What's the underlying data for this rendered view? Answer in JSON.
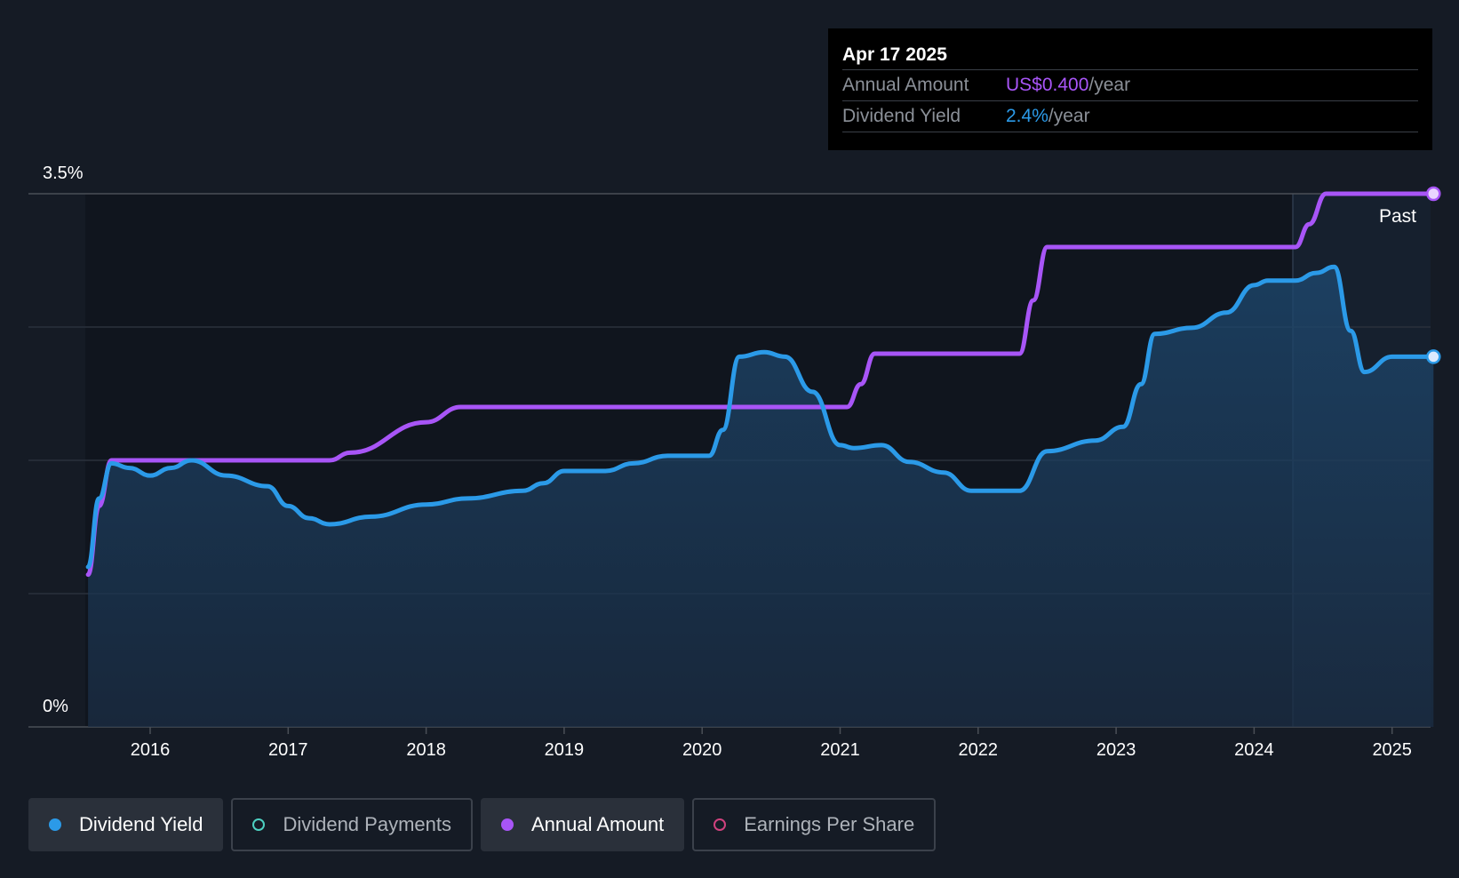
{
  "chart_data": {
    "type": "line",
    "y_axis": {
      "top_label": "3.5%",
      "bottom_label": "0%",
      "ylim": [
        0,
        3.5
      ]
    },
    "x_ticks": [
      "2016",
      "2017",
      "2018",
      "2019",
      "2020",
      "2021",
      "2022",
      "2023",
      "2024",
      "2025"
    ],
    "past_label": "Past",
    "series": [
      {
        "name": "Dividend Yield",
        "color": "#2b9ae8",
        "unit": "%",
        "points": [
          [
            2015.55,
            1.05
          ],
          [
            2015.63,
            1.5
          ],
          [
            2015.72,
            1.73
          ],
          [
            2015.85,
            1.7
          ],
          [
            2016.0,
            1.65
          ],
          [
            2016.15,
            1.7
          ],
          [
            2016.3,
            1.75
          ],
          [
            2016.55,
            1.65
          ],
          [
            2016.85,
            1.58
          ],
          [
            2017.0,
            1.45
          ],
          [
            2017.15,
            1.37
          ],
          [
            2017.3,
            1.33
          ],
          [
            2017.6,
            1.38
          ],
          [
            2018.0,
            1.46
          ],
          [
            2018.3,
            1.5
          ],
          [
            2018.7,
            1.55
          ],
          [
            2018.85,
            1.6
          ],
          [
            2019.0,
            1.68
          ],
          [
            2019.3,
            1.68
          ],
          [
            2019.5,
            1.73
          ],
          [
            2019.75,
            1.78
          ],
          [
            2020.05,
            1.78
          ],
          [
            2020.15,
            1.95
          ],
          [
            2020.27,
            2.43
          ],
          [
            2020.45,
            2.46
          ],
          [
            2020.6,
            2.43
          ],
          [
            2020.8,
            2.2
          ],
          [
            2021.0,
            1.85
          ],
          [
            2021.1,
            1.83
          ],
          [
            2021.3,
            1.85
          ],
          [
            2021.5,
            1.74
          ],
          [
            2021.75,
            1.67
          ],
          [
            2021.95,
            1.55
          ],
          [
            2022.3,
            1.55
          ],
          [
            2022.5,
            1.81
          ],
          [
            2022.85,
            1.88
          ],
          [
            2023.05,
            1.97
          ],
          [
            2023.18,
            2.25
          ],
          [
            2023.28,
            2.58
          ],
          [
            2023.55,
            2.62
          ],
          [
            2023.8,
            2.72
          ],
          [
            2024.0,
            2.9
          ],
          [
            2024.1,
            2.93
          ],
          [
            2024.3,
            2.93
          ],
          [
            2024.45,
            2.98
          ],
          [
            2024.58,
            3.02
          ],
          [
            2024.7,
            2.6
          ],
          [
            2024.8,
            2.33
          ],
          [
            2025.0,
            2.43
          ],
          [
            2025.3,
            2.43
          ]
        ]
      },
      {
        "name": "Annual Amount",
        "color": "#a855f7",
        "unit": "US$",
        "points": [
          [
            2015.55,
            1.0
          ],
          [
            2015.63,
            1.45
          ],
          [
            2015.72,
            1.75
          ],
          [
            2017.3,
            1.75
          ],
          [
            2017.45,
            1.8
          ],
          [
            2018.0,
            2.0
          ],
          [
            2018.25,
            2.1
          ],
          [
            2020.4,
            2.1
          ],
          [
            2021.05,
            2.1
          ],
          [
            2021.15,
            2.25
          ],
          [
            2021.25,
            2.45
          ],
          [
            2022.3,
            2.45
          ],
          [
            2022.4,
            2.8
          ],
          [
            2022.5,
            3.15
          ],
          [
            2024.3,
            3.15
          ],
          [
            2024.4,
            3.3
          ],
          [
            2024.52,
            3.5
          ],
          [
            2025.3,
            3.5
          ]
        ]
      }
    ],
    "tooltip": {
      "date": "Apr 17 2025",
      "rows": [
        {
          "label": "Annual Amount",
          "value": "US$0.400",
          "suffix": "/year"
        },
        {
          "label": "Dividend Yield",
          "value": "2.4%",
          "suffix": "/year"
        }
      ]
    },
    "legend": [
      {
        "label": "Dividend Yield",
        "color": "#2b9ae8",
        "active": true
      },
      {
        "label": "Dividend Payments",
        "color": "#4dd0c1",
        "active": false
      },
      {
        "label": "Annual Amount",
        "color": "#a855f7",
        "active": true
      },
      {
        "label": "Earnings Per Share",
        "color": "#d0427e",
        "active": false
      }
    ]
  }
}
